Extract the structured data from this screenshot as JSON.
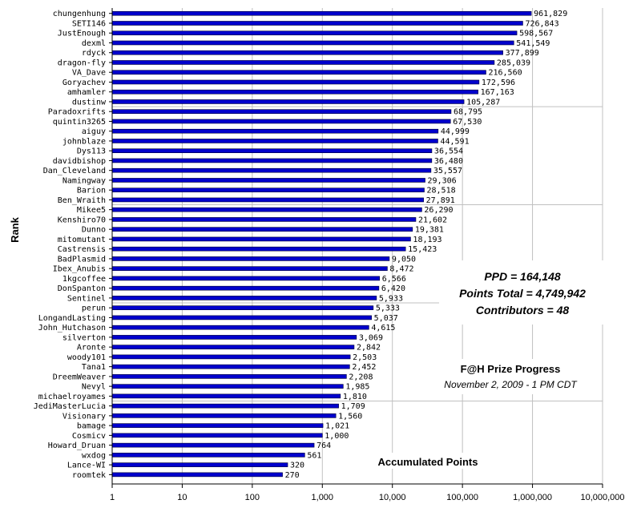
{
  "chart_data": {
    "type": "bar",
    "orientation": "horizontal",
    "xscale": "log",
    "xlim": [
      1,
      10000000
    ],
    "grid": true,
    "legend": "none",
    "ylabel": "Rank",
    "xlabel": "Accumulated Points",
    "title": "F@H Prize Progress",
    "subtitle": "November 2, 2009 - 1 PM CDT",
    "stats": [
      "PPD = 164,148",
      "Points Total = 4,749,942",
      "Contributors = 48"
    ],
    "tick_labels": [
      "1",
      "10",
      "100",
      "1,000",
      "10,000",
      "100,000",
      "1,000,000",
      "10,000,000"
    ],
    "bar_color": "#0000cc",
    "categories": [
      "chungenhung",
      "SETI146",
      "JustEnough",
      "dexml",
      "rdyck",
      "dragon-fly",
      "VA_Dave",
      "Goryachev",
      "amhamler",
      "dustinw",
      "Paradoxrifts",
      "quintin3265",
      "aiguy",
      "johnblaze",
      "Dys113",
      "davidbishop",
      "Dan_Cleveland",
      "Namingway",
      "Barion",
      "Ben_Wraith",
      "Mikee5",
      "Kenshiro70",
      "Dunno",
      "mitomutant",
      "Castrensis",
      "BadPlasmid",
      "Ibex_Anubis",
      "1kgcoffee",
      "DonSpanton",
      "Sentinel",
      "perun",
      "LongandLasting",
      "John_Hutchason",
      "silverton",
      "Aronte",
      "woody101",
      "Tana1",
      "DreemWeaver",
      "Nevyl",
      "michaelroyames",
      "JediMasterLucia",
      "Visionary",
      "bamage",
      "Cosmicv",
      "Howard_Druan",
      "wxdog",
      "Lance-WI",
      "roomtek"
    ],
    "values": [
      961829,
      726843,
      598567,
      541549,
      377899,
      285039,
      216560,
      172596,
      167163,
      105287,
      68795,
      67530,
      44999,
      44591,
      36554,
      36480,
      35557,
      29306,
      28518,
      27891,
      26290,
      21602,
      19381,
      18193,
      15423,
      9050,
      8472,
      6566,
      6420,
      5933,
      5333,
      5037,
      4615,
      3069,
      2842,
      2503,
      2452,
      2208,
      1985,
      1810,
      1709,
      1560,
      1021,
      1000,
      764,
      561,
      320,
      270
    ],
    "value_labels": [
      "961,829",
      "726,843",
      "598,567",
      "541,549",
      "377,899",
      "285,039",
      "216,560",
      "172,596",
      "167,163",
      "105,287",
      "68,795",
      "67,530",
      "44,999",
      "44,591",
      "36,554",
      "36,480",
      "35,557",
      "29,306",
      "28,518",
      "27,891",
      "26,290",
      "21,602",
      "19,381",
      "18,193",
      "15,423",
      "9,050",
      "8,472",
      "6,566",
      "6,420",
      "5,933",
      "5,333",
      "5,037",
      "4,615",
      "3,069",
      "2,842",
      "2,503",
      "2,452",
      "2,208",
      "1,985",
      "1,810",
      "1,709",
      "1,560",
      "1,021",
      "1,000",
      "764",
      "561",
      "320",
      "270"
    ]
  }
}
